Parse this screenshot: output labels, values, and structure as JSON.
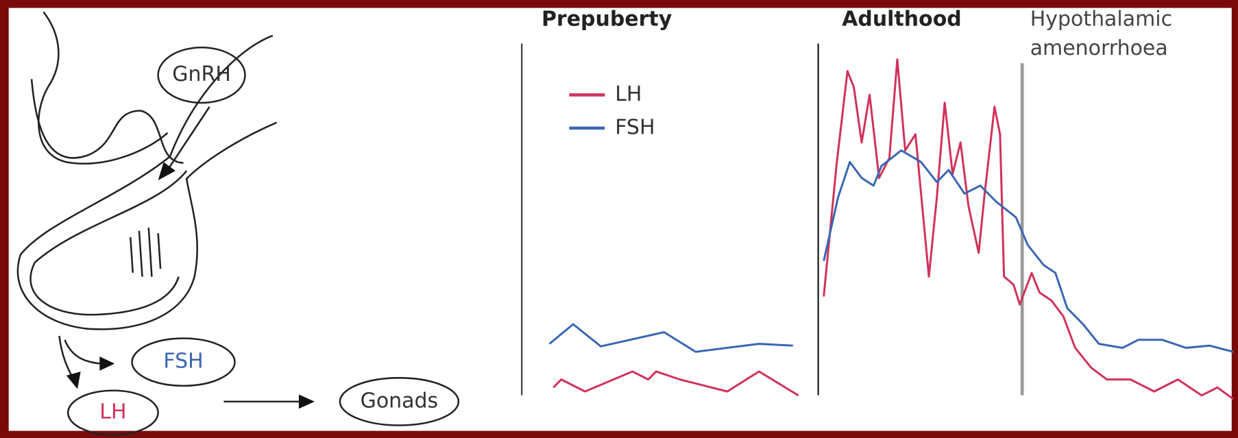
{
  "diagram": {
    "nodes": [
      {
        "label": "GnRH",
        "color": "#333333"
      },
      {
        "label": "FSH",
        "color": "#3a66b3"
      },
      {
        "label": "LH",
        "color": "#d0325a"
      },
      {
        "label": "Gonads",
        "color": "#333333"
      }
    ]
  },
  "chart_data": {
    "type": "line",
    "phases": [
      {
        "label_lines": [
          "Prepuberty"
        ]
      },
      {
        "label_lines": [
          "Adulthood"
        ]
      },
      {
        "label_lines": [
          "Hypothalamic",
          "amenorrhoea"
        ]
      }
    ],
    "xlim": [
      0,
      865
    ],
    "ylim": [
      0,
      100
    ],
    "series": [
      {
        "name": "LH",
        "color": "#d0325a",
        "x": [
          5,
          15,
          45,
          105,
          125,
          135,
          165,
          225,
          265,
          315,
          330,
          347,
          363,
          377,
          385,
          395,
          405,
          417,
          430,
          440,
          450,
          463,
          480,
          490,
          500,
          510,
          520,
          530,
          543,
          550,
          563,
          570,
          575,
          587,
          595,
          610,
          620,
          635,
          650,
          665,
          685,
          705,
          735,
          765,
          795,
          825,
          845,
          865
        ],
        "values": [
          6.5,
          8.7,
          5.4,
          10.9,
          8.7,
          10.9,
          8.7,
          5.4,
          10.9,
          4.3,
          null,
          31.5,
          67.4,
          93.5,
          89.1,
          73.9,
          87.0,
          64.1,
          69.6,
          96.7,
          71.7,
          76.1,
          37.0,
          58.7,
          84.8,
          65.2,
          73.9,
          56.5,
          43.5,
          58.7,
          83.7,
          76.1,
          37.0,
          34.8,
          29.3,
          38.0,
          32.6,
          30.4,
          26.1,
          17.4,
          12.0,
          8.7,
          8.7,
          5.4,
          8.7,
          4.3,
          6.5,
          3.3
        ]
      },
      {
        "name": "FSH",
        "color": "#3a66b3",
        "x": [
          0,
          30,
          65,
          145,
          185,
          265,
          308,
          325,
          347,
          365,
          380,
          395,
          410,
          420,
          445,
          470,
          490,
          505,
          525,
          545,
          565,
          590,
          605,
          625,
          640,
          655,
          675,
          695,
          725,
          745,
          775,
          805,
          835,
          865
        ],
        "values": [
          18.5,
          23.9,
          17.8,
          21.7,
          16.3,
          18.5,
          18.0,
          null,
          41.3,
          58.7,
          68.5,
          64.1,
          62.0,
          67.4,
          71.7,
          68.5,
          63.0,
          66.3,
          59.8,
          62.0,
          57.6,
          53.3,
          45.7,
          40.2,
          38.0,
          28.3,
          23.9,
          18.5,
          17.4,
          19.6,
          19.6,
          17.4,
          18.0,
          16.3
        ]
      }
    ]
  }
}
